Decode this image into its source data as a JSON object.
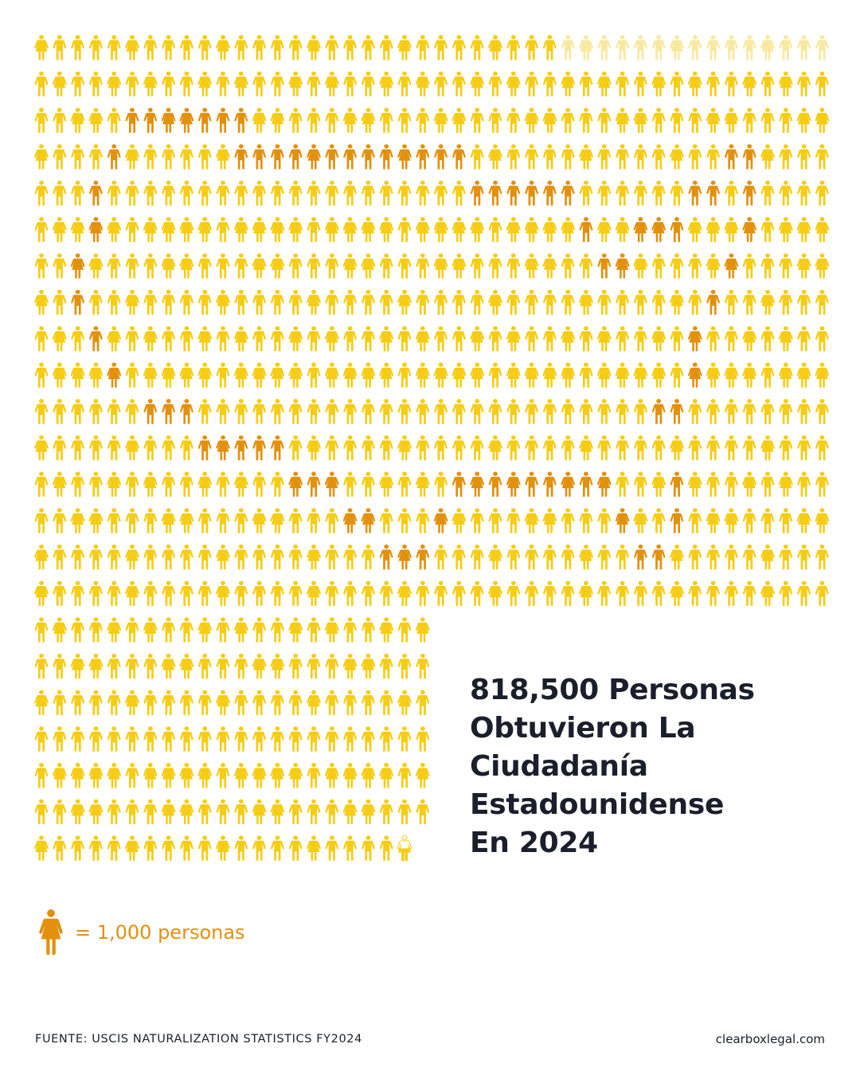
{
  "headline": {
    "lines": [
      "818,500 Personas",
      "Obtuvieron La",
      "Ciudadanía",
      "Estadounidense",
      "En 2024"
    ]
  },
  "legend": {
    "icon": "person-icon",
    "label": "= 1,000 personas"
  },
  "footer": {
    "source": "FUENTE: USCIS NATURALIZATION STATISTICS FY2024",
    "site": "clearboxlegal.com"
  },
  "colors": {
    "base": "#f6cc14",
    "highlight": "#e3900c",
    "faded": "#f8e9a0",
    "text": "#1a1f2b"
  },
  "chart_data": {
    "type": "pictogram",
    "total_people": 818500,
    "unit_value": 1000,
    "icon_count": 818.5,
    "rows_full_width": 16,
    "rows_partial_width": 7,
    "icons_per_full_row": 44,
    "icons_per_partial_row": 22,
    "highlight_cells": [
      [
        2,
        5
      ],
      [
        2,
        6
      ],
      [
        2,
        7
      ],
      [
        2,
        8
      ],
      [
        2,
        9
      ],
      [
        2,
        10
      ],
      [
        2,
        11
      ],
      [
        3,
        4
      ],
      [
        3,
        11
      ],
      [
        3,
        12
      ],
      [
        3,
        13
      ],
      [
        3,
        14
      ],
      [
        3,
        15
      ],
      [
        3,
        16
      ],
      [
        3,
        17
      ],
      [
        3,
        18
      ],
      [
        3,
        19
      ],
      [
        3,
        20
      ],
      [
        3,
        21
      ],
      [
        3,
        22
      ],
      [
        3,
        23
      ],
      [
        3,
        38
      ],
      [
        3,
        39
      ],
      [
        4,
        3
      ],
      [
        4,
        24
      ],
      [
        4,
        25
      ],
      [
        4,
        26
      ],
      [
        4,
        27
      ],
      [
        4,
        28
      ],
      [
        4,
        29
      ],
      [
        4,
        36
      ],
      [
        4,
        37
      ],
      [
        4,
        39
      ],
      [
        5,
        3
      ],
      [
        5,
        30
      ],
      [
        5,
        33
      ],
      [
        5,
        34
      ],
      [
        5,
        35
      ],
      [
        5,
        39
      ],
      [
        6,
        2
      ],
      [
        6,
        31
      ],
      [
        6,
        32
      ],
      [
        6,
        38
      ],
      [
        7,
        2
      ],
      [
        7,
        37
      ],
      [
        8,
        3
      ],
      [
        8,
        36
      ],
      [
        9,
        4
      ],
      [
        9,
        36
      ],
      [
        10,
        6
      ],
      [
        10,
        7
      ],
      [
        10,
        8
      ],
      [
        10,
        34
      ],
      [
        10,
        35
      ],
      [
        11,
        9
      ],
      [
        11,
        10
      ],
      [
        11,
        11
      ],
      [
        11,
        12
      ],
      [
        11,
        13
      ],
      [
        12,
        14
      ],
      [
        12,
        15
      ],
      [
        12,
        16
      ],
      [
        12,
        23
      ],
      [
        12,
        24
      ],
      [
        12,
        25
      ],
      [
        12,
        26
      ],
      [
        12,
        27
      ],
      [
        12,
        28
      ],
      [
        12,
        29
      ],
      [
        12,
        30
      ],
      [
        12,
        31
      ],
      [
        12,
        35
      ],
      [
        13,
        17
      ],
      [
        13,
        18
      ],
      [
        13,
        22
      ],
      [
        13,
        32
      ],
      [
        13,
        35
      ],
      [
        14,
        19
      ],
      [
        14,
        20
      ],
      [
        14,
        21
      ],
      [
        14,
        33
      ],
      [
        14,
        34
      ]
    ],
    "faded_cells": [
      [
        0,
        29
      ],
      [
        0,
        30
      ],
      [
        0,
        31
      ],
      [
        0,
        32
      ],
      [
        0,
        33
      ],
      [
        0,
        34
      ],
      [
        0,
        35
      ],
      [
        0,
        36
      ],
      [
        0,
        37
      ],
      [
        0,
        38
      ],
      [
        0,
        39
      ],
      [
        0,
        40
      ],
      [
        0,
        41
      ],
      [
        0,
        42
      ],
      [
        0,
        43
      ]
    ],
    "partial_icon": {
      "row": 22,
      "col": 20,
      "fraction": 0.5
    }
  }
}
